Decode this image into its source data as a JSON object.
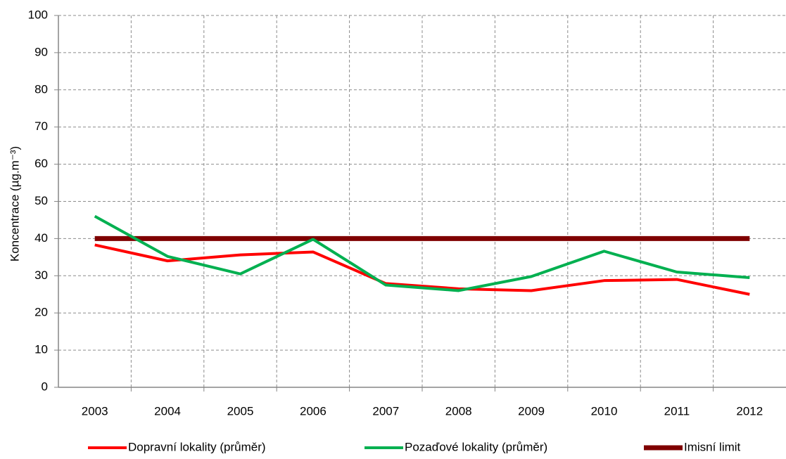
{
  "chart_data": {
    "type": "line",
    "y_label": "Koncentrace (µg.m⁻³)",
    "categories": [
      "2003",
      "2004",
      "2005",
      "2006",
      "2007",
      "2008",
      "2009",
      "2010",
      "2011",
      "2012"
    ],
    "series": [
      {
        "name": "Dopravní lokality (průměr)",
        "color": "#ff0000",
        "values": [
          38.3,
          34,
          35.6,
          36.4,
          27.9,
          26.5,
          26,
          28.7,
          29,
          25
        ]
      },
      {
        "name": "Pozaďové lokality (průměr)",
        "color": "#00b050",
        "values": [
          46,
          35.2,
          30.5,
          39.8,
          27.5,
          26,
          29.8,
          36.6,
          31,
          29.5
        ]
      },
      {
        "name": "Imisní limit",
        "color": "#7f0000",
        "values": [
          40,
          40,
          40,
          40,
          40,
          40,
          40,
          40,
          40,
          40
        ]
      }
    ],
    "ylim": [
      0,
      100
    ],
    "yticks": [
      0,
      10,
      20,
      30,
      40,
      50,
      60,
      70,
      80,
      90,
      100
    ],
    "grid": true,
    "legend": "bottom"
  }
}
